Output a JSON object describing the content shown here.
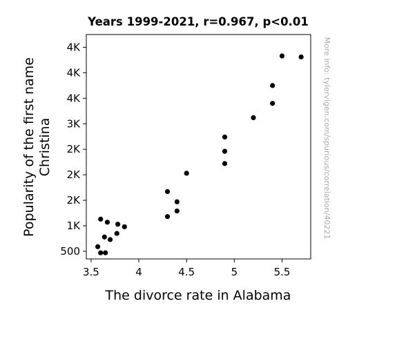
{
  "chart_data": {
    "type": "scatter",
    "title": "Years 1999-2021, r=0.967, p<0.01",
    "xlabel": "The divorce rate in Alabama",
    "ylabel": [
      "Popularity of the first name",
      "Christina"
    ],
    "watermark": "More info: tylervigen.com/spurious/correlation/40221",
    "xlim": [
      3.45,
      5.8
    ],
    "ylim": [
      350,
      4750
    ],
    "x_ticks": [
      3.5,
      4.0,
      4.5,
      5.0,
      5.5
    ],
    "x_tick_labels": [
      "3.5",
      "4",
      "4.5",
      "5",
      "5.5"
    ],
    "y_ticks": [
      500,
      1000,
      1500,
      2000,
      2500,
      3000,
      3500,
      4000,
      4500
    ],
    "y_tick_labels": [
      "500",
      "1K",
      "2K",
      "2K",
      "2K",
      "3K",
      "4K",
      "4K",
      "4K"
    ],
    "grid": false,
    "legend": "none",
    "point_color": "#000000",
    "points": [
      {
        "x": 3.57,
        "y": 590
      },
      {
        "x": 3.6,
        "y": 470
      },
      {
        "x": 3.65,
        "y": 470
      },
      {
        "x": 3.6,
        "y": 1130
      },
      {
        "x": 3.64,
        "y": 780
      },
      {
        "x": 3.67,
        "y": 1070
      },
      {
        "x": 3.7,
        "y": 730
      },
      {
        "x": 3.77,
        "y": 850
      },
      {
        "x": 3.78,
        "y": 1030
      },
      {
        "x": 3.85,
        "y": 980
      },
      {
        "x": 4.3,
        "y": 1180
      },
      {
        "x": 4.3,
        "y": 1670
      },
      {
        "x": 4.4,
        "y": 1290
      },
      {
        "x": 4.4,
        "y": 1470
      },
      {
        "x": 4.5,
        "y": 2030
      },
      {
        "x": 4.9,
        "y": 2220
      },
      {
        "x": 4.9,
        "y": 2460
      },
      {
        "x": 4.9,
        "y": 2740
      },
      {
        "x": 5.2,
        "y": 3120
      },
      {
        "x": 5.4,
        "y": 3400
      },
      {
        "x": 5.4,
        "y": 3750
      },
      {
        "x": 5.5,
        "y": 4330
      },
      {
        "x": 5.7,
        "y": 4310
      }
    ]
  }
}
